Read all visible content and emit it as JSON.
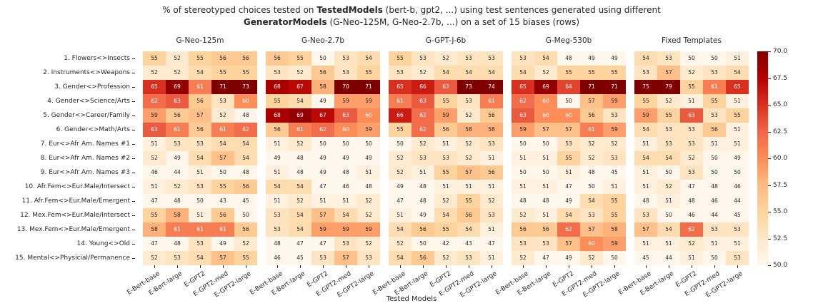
{
  "title": {
    "line1_pre": "% of stereotyped choices tested on ",
    "line1_bold": "TestedModels",
    "line1_post": " (bert-b, gpt2, ...) using test sentences generated using different",
    "line2_bold": "GeneratorModels",
    "line2_post": " (G-Neo-125M, G-Neo-2.7b, ...) on a set of 15 biases (rows)"
  },
  "chart_data": {
    "type": "heatmap",
    "colormap": "OrRd",
    "vmin": 50,
    "vmax": 70,
    "xlabel": "Tested Models",
    "legend_position": "right-colorbar",
    "colorbar_ticks": [
      "50.0",
      "52.5",
      "55.0",
      "57.5",
      "60.0",
      "62.5",
      "65.0",
      "67.5",
      "70.0"
    ],
    "rows": [
      "1. Flowers<>Insects",
      "2. Instruments<>Weapons",
      "3. Gender<>Profession",
      "4. Gender<>Science/Arts",
      "5. Gender<>Career/Family",
      "6. Gender<>Math/Arts",
      "7. Eur<>Afr Am. Names #1",
      "8. Eur<>Afr Am. Names #2",
      "9. Eur<>Afr Am. Names #3",
      "10. Afr.Fem<>Eur.Male/Intersect",
      "11. Afr.Fem<>Eur.Male/Emergent",
      "12. Mex.Fem<>Eur.Male/Intersect",
      "13. Mex.Fem<>Eur.Male/Emergent",
      "14. Young<>Old",
      "15. Mental<>Physicial/Permanence"
    ],
    "columns": [
      "E-Bert-base",
      "E-Bert-large",
      "E-GPT2",
      "E-GPT2-med",
      "E-GPT2-large"
    ],
    "panels": [
      {
        "title": "G-Neo-125m",
        "values": [
          [
            55,
            52,
            55,
            56,
            56
          ],
          [
            52,
            52,
            54,
            55,
            55
          ],
          [
            65,
            69,
            61,
            71,
            73
          ],
          [
            62,
            63,
            56,
            53,
            60
          ],
          [
            59,
            56,
            57,
            52,
            48
          ],
          [
            63,
            61,
            56,
            61,
            62
          ],
          [
            51,
            53,
            53,
            54,
            54
          ],
          [
            52,
            49,
            54,
            57,
            54
          ],
          [
            46,
            44,
            51,
            50,
            48
          ],
          [
            51,
            52,
            53,
            55,
            56
          ],
          [
            47,
            48,
            50,
            43,
            45
          ],
          [
            55,
            58,
            51,
            56,
            50
          ],
          [
            58,
            61,
            61,
            61,
            56
          ],
          [
            47,
            48,
            53,
            49,
            52
          ],
          [
            52,
            53,
            54,
            57,
            55
          ]
        ]
      },
      {
        "title": "G-Neo-2.7b",
        "values": [
          [
            56,
            55,
            50,
            53,
            54
          ],
          [
            53,
            52,
            56,
            53,
            55
          ],
          [
            68,
            67,
            58,
            70,
            71
          ],
          [
            55,
            54,
            49,
            59,
            59
          ],
          [
            68,
            69,
            67,
            63,
            60
          ],
          [
            56,
            61,
            62,
            60,
            59
          ],
          [
            51,
            52,
            50,
            50,
            50
          ],
          [
            49,
            48,
            49,
            49,
            49
          ],
          [
            51,
            48,
            49,
            48,
            51
          ],
          [
            54,
            54,
            47,
            46,
            48
          ],
          [
            51,
            52,
            51,
            51,
            52
          ],
          [
            53,
            54,
            57,
            54,
            52
          ],
          [
            53,
            54,
            59,
            59,
            59
          ],
          [
            48,
            47,
            47,
            53,
            52
          ],
          [
            46,
            45,
            53,
            57,
            53
          ]
        ]
      },
      {
        "title": "G-GPT-J-6b",
        "values": [
          [
            55,
            53,
            52,
            53,
            53
          ],
          [
            53,
            52,
            54,
            54,
            54
          ],
          [
            65,
            66,
            63,
            73,
            74
          ],
          [
            61,
            63,
            55,
            53,
            61
          ],
          [
            66,
            62,
            59,
            52,
            56
          ],
          [
            55,
            62,
            56,
            58,
            58
          ],
          [
            50,
            52,
            51,
            52,
            53
          ],
          [
            52,
            53,
            53,
            52,
            51
          ],
          [
            52,
            51,
            55,
            57,
            56
          ],
          [
            49,
            48,
            51,
            51,
            51
          ],
          [
            47,
            48,
            52,
            55,
            52
          ],
          [
            51,
            49,
            54,
            56,
            53
          ],
          [
            54,
            56,
            55,
            54,
            51
          ],
          [
            52,
            50,
            42,
            43,
            47
          ],
          [
            54,
            56,
            52,
            53,
            51
          ]
        ]
      },
      {
        "title": "G-Meg-530b",
        "values": [
          [
            53,
            54,
            48,
            49,
            49
          ],
          [
            54,
            52,
            55,
            55,
            55
          ],
          [
            65,
            69,
            64,
            71,
            71
          ],
          [
            62,
            60,
            50,
            57,
            59
          ],
          [
            63,
            60,
            60,
            56,
            53
          ],
          [
            59,
            57,
            57,
            61,
            59
          ],
          [
            50,
            50,
            53,
            52,
            52
          ],
          [
            51,
            51,
            55,
            52,
            53
          ],
          [
            50,
            50,
            51,
            48,
            45
          ],
          [
            51,
            51,
            47,
            50,
            51
          ],
          [
            48,
            48,
            49,
            54,
            55
          ],
          [
            52,
            51,
            54,
            53,
            55
          ],
          [
            56,
            56,
            62,
            57,
            58
          ],
          [
            53,
            53,
            57,
            60,
            59
          ],
          [
            52,
            47,
            49,
            52,
            50
          ]
        ]
      },
      {
        "title": "Fixed Templates",
        "values": [
          [
            54,
            53,
            50,
            50,
            51
          ],
          [
            53,
            57,
            52,
            53,
            54
          ],
          [
            75,
            79,
            55,
            61,
            65
          ],
          [
            55,
            52,
            51,
            55,
            51
          ],
          [
            59,
            55,
            63,
            53,
            55
          ],
          [
            54,
            53,
            53,
            56,
            51
          ],
          [
            51,
            53,
            53,
            51,
            51
          ],
          [
            54,
            54,
            52,
            50,
            49
          ],
          [
            51,
            50,
            53,
            50,
            50
          ],
          [
            51,
            52,
            47,
            48,
            46
          ],
          [
            48,
            51,
            48,
            46,
            44
          ],
          [
            53,
            50,
            46,
            44,
            45
          ],
          [
            57,
            54,
            62,
            53,
            53
          ],
          [
            51,
            51,
            52,
            51,
            51
          ],
          [
            45,
            44,
            51,
            50,
            53
          ]
        ]
      }
    ]
  }
}
